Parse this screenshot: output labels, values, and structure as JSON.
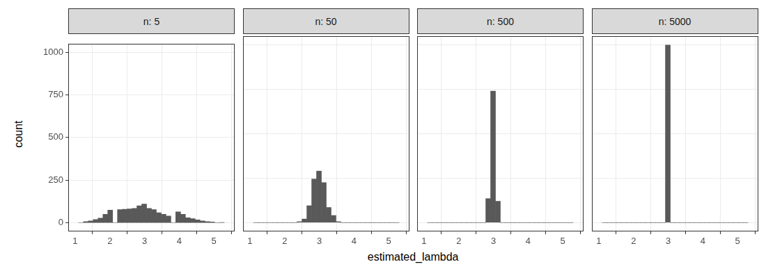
{
  "chart_data": [
    {
      "type": "histogram",
      "title": "n: 5",
      "bins": [
        1.1,
        1.24,
        1.38,
        1.52,
        1.66,
        1.8,
        1.94,
        2.08,
        2.22,
        2.36,
        2.5,
        2.64,
        2.78,
        2.92,
        3.06,
        3.2,
        3.34,
        3.48,
        3.62,
        3.76,
        3.9,
        4.04,
        4.18,
        4.32,
        4.46,
        4.6,
        4.74,
        4.88,
        5.02,
        5.16,
        5.3
      ],
      "counts": [
        2,
        8,
        12,
        20,
        28,
        50,
        75,
        0,
        78,
        80,
        82,
        85,
        100,
        110,
        85,
        78,
        60,
        50,
        40,
        0,
        65,
        50,
        30,
        25,
        18,
        12,
        8,
        6,
        0,
        3
      ],
      "color": "#595959",
      "xlim": [
        0.8,
        5.6
      ],
      "xticks": [
        1,
        2,
        3,
        4,
        5
      ],
      "ylim": [
        -50,
        1050
      ],
      "yticks": [
        0,
        250,
        500,
        750,
        1000
      ],
      "grid": true
    },
    {
      "type": "histogram",
      "title": "n: 50",
      "bins": [
        1.1,
        1.24,
        1.38,
        1.52,
        1.66,
        1.8,
        1.94,
        2.08,
        2.22,
        2.36,
        2.5,
        2.64,
        2.78,
        2.92,
        3.06,
        3.2,
        3.34,
        3.48,
        3.62,
        3.76,
        3.9,
        4.04,
        4.18,
        4.32,
        4.46,
        4.6,
        4.74,
        4.88,
        5.02,
        5.16,
        5.3
      ],
      "counts": [
        0,
        0,
        0,
        0,
        0,
        0,
        0,
        0,
        0,
        5,
        20,
        95,
        245,
        290,
        225,
        85,
        40,
        5,
        0,
        0,
        0,
        0,
        0,
        0,
        0,
        0,
        0,
        0,
        0,
        0
      ],
      "color": "#595959",
      "xlim": [
        0.8,
        5.6
      ],
      "xticks": [
        1,
        2,
        3,
        4,
        5
      ],
      "ylim": [
        -50,
        1050
      ],
      "yticks": [
        0,
        250,
        500,
        750,
        1000
      ],
      "grid": true,
      "tick_labels": "x"
    },
    {
      "type": "histogram",
      "title": "n: 500",
      "bins": [
        1.1,
        1.24,
        1.38,
        1.52,
        1.66,
        1.8,
        1.94,
        2.08,
        2.22,
        2.36,
        2.5,
        2.64,
        2.78,
        2.92,
        3.06,
        3.2,
        3.34,
        3.48,
        3.62,
        3.76,
        3.9,
        4.04,
        4.18,
        4.32,
        4.46,
        4.6,
        4.74,
        4.88,
        5.02,
        5.16,
        5.3
      ],
      "counts": [
        0,
        0,
        0,
        0,
        0,
        0,
        0,
        0,
        0,
        0,
        0,
        0,
        135,
        740,
        120,
        0,
        0,
        0,
        0,
        0,
        0,
        0,
        0,
        0,
        0,
        0,
        0,
        0,
        0,
        0
      ],
      "color": "#595959",
      "xlim": [
        0.8,
        5.6
      ],
      "xticks": [
        1,
        2,
        3,
        4,
        5
      ],
      "ylim": [
        -50,
        1050
      ],
      "yticks": [
        0,
        250,
        500,
        750,
        1000
      ],
      "grid": true,
      "tick_labels": "x"
    },
    {
      "type": "histogram",
      "title": "n: 5000",
      "bins": [
        1.1,
        1.24,
        1.38,
        1.52,
        1.66,
        1.8,
        1.94,
        2.08,
        2.22,
        2.36,
        2.5,
        2.64,
        2.78,
        2.92,
        3.06,
        3.2,
        3.34,
        3.48,
        3.62,
        3.76,
        3.9,
        4.04,
        4.18,
        4.32,
        4.46,
        4.6,
        4.74,
        4.88,
        5.02,
        5.16,
        5.3
      ],
      "counts": [
        0,
        0,
        0,
        0,
        0,
        0,
        0,
        0,
        0,
        0,
        0,
        0,
        0,
        1000,
        0,
        0,
        0,
        0,
        0,
        0,
        0,
        0,
        0,
        0,
        0,
        0,
        0,
        0,
        0,
        0
      ],
      "color": "#595959",
      "xlim": [
        0.8,
        5.6
      ],
      "xticks": [
        1,
        2,
        3,
        4,
        5
      ],
      "ylim": [
        -50,
        1050
      ],
      "yticks": [
        0,
        250,
        500,
        750,
        1000
      ],
      "grid": true,
      "tick_labels": "x"
    }
  ],
  "xlabel": "estimated_lambda",
  "ylabel": "count"
}
